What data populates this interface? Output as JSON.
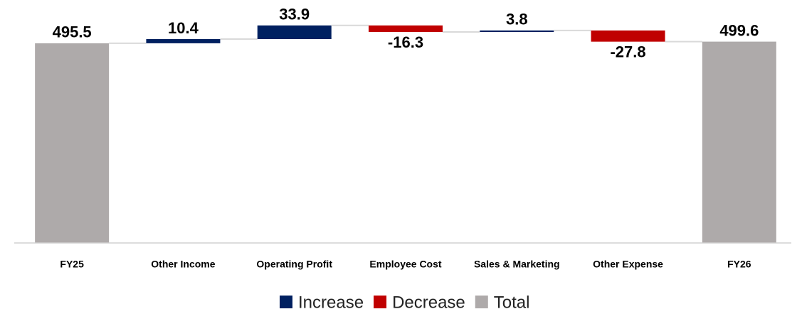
{
  "chart_data": {
    "type": "waterfall",
    "categories": [
      "FY25",
      "Other Income",
      "Operating Profit",
      "Employee Cost",
      "Sales & Marketing",
      "Other Expense",
      "FY26"
    ],
    "values": [
      495.5,
      10.4,
      33.9,
      -16.3,
      3.8,
      -27.8,
      499.6
    ],
    "measure": [
      "total",
      "relative",
      "relative",
      "relative",
      "relative",
      "relative",
      "total"
    ],
    "legend": [
      {
        "name": "Increase",
        "color": "#002060"
      },
      {
        "name": "Decrease",
        "color": "#c00000"
      },
      {
        "name": "Total",
        "color": "#aeaaaa"
      }
    ],
    "ylim": [
      0,
      550
    ]
  }
}
